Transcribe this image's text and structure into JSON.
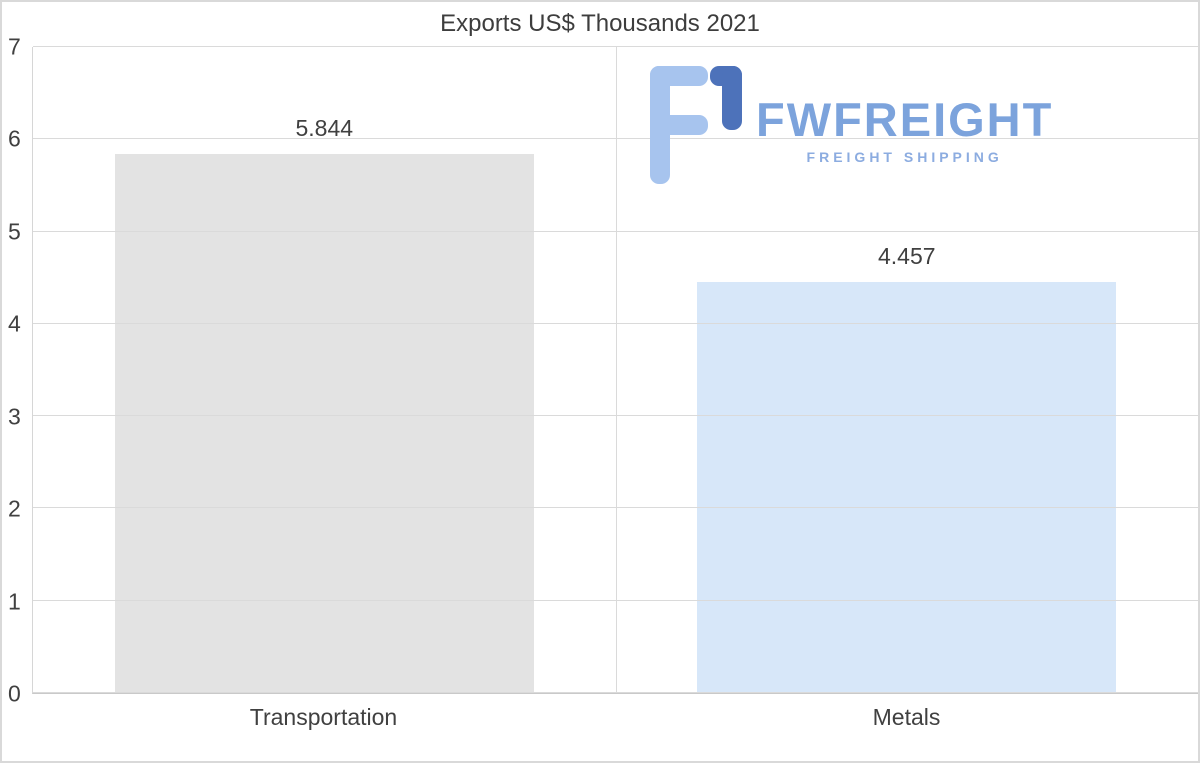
{
  "title": "Exports US$ Thousands 2021",
  "logo": {
    "brand": "FWFREIGHT",
    "tagline": "FREIGHT SHIPPING",
    "icon_light_blue": "#a7c4ee",
    "icon_dark_blue": "#4d72ba",
    "text_blue": "#7ca3dc"
  },
  "chart_data": {
    "type": "bar",
    "title": "Exports US$ Thousands 2021",
    "categories": [
      "Transportation",
      "Metals"
    ],
    "values": [
      5.844,
      4.457
    ],
    "value_labels": [
      "5.844",
      "4.457"
    ],
    "bar_colors": [
      "#e3e3e3",
      "#d7e7f9"
    ],
    "xlabel": "",
    "ylabel": "",
    "ylim": [
      0,
      7
    ],
    "yticks": [
      0,
      1,
      2,
      3,
      4,
      5,
      6,
      7
    ],
    "grid": true,
    "legend": false
  },
  "colors": {
    "gridline": "#dadada",
    "text": "#404040"
  }
}
